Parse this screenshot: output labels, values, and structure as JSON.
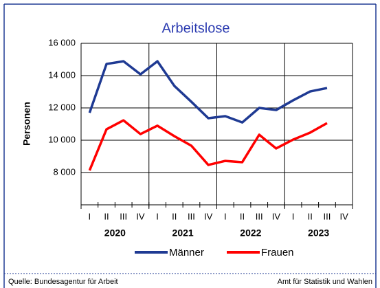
{
  "chart_data": {
    "type": "line",
    "title": "Arbeitslose",
    "ylabel": "Personen",
    "categories": [
      "I",
      "II",
      "III",
      "IV",
      "I",
      "II",
      "III",
      "IV",
      "I",
      "II",
      "III",
      "IV",
      "I",
      "II",
      "III",
      "IV"
    ],
    "years": [
      "2020",
      "2021",
      "2022",
      "2023"
    ],
    "series": [
      {
        "name": "Männer",
        "color": "#1f3a93",
        "values": [
          11700,
          14720,
          14890,
          14080,
          14890,
          13360,
          12380,
          11360,
          11490,
          11100,
          12000,
          11870,
          12470,
          13020,
          13230,
          null
        ]
      },
      {
        "name": "Frauen",
        "color": "#ff0000",
        "values": [
          8130,
          10680,
          11230,
          10380,
          10900,
          10250,
          9660,
          8470,
          8720,
          8640,
          10340,
          9490,
          10040,
          10470,
          11060,
          null
        ]
      }
    ],
    "ylim": [
      6000,
      16000
    ],
    "yticks": [
      {
        "value": 8000,
        "label": "8 000"
      },
      {
        "value": 10000,
        "label": "10 000"
      },
      {
        "value": 12000,
        "label": "12 000"
      },
      {
        "value": 14000,
        "label": "14 000"
      },
      {
        "value": 16000,
        "label": "16 000"
      }
    ],
    "grid": true,
    "source": "Quelle: Bundesagentur für Arbeit",
    "publisher": "Amt für Statistik und Wahlen"
  }
}
